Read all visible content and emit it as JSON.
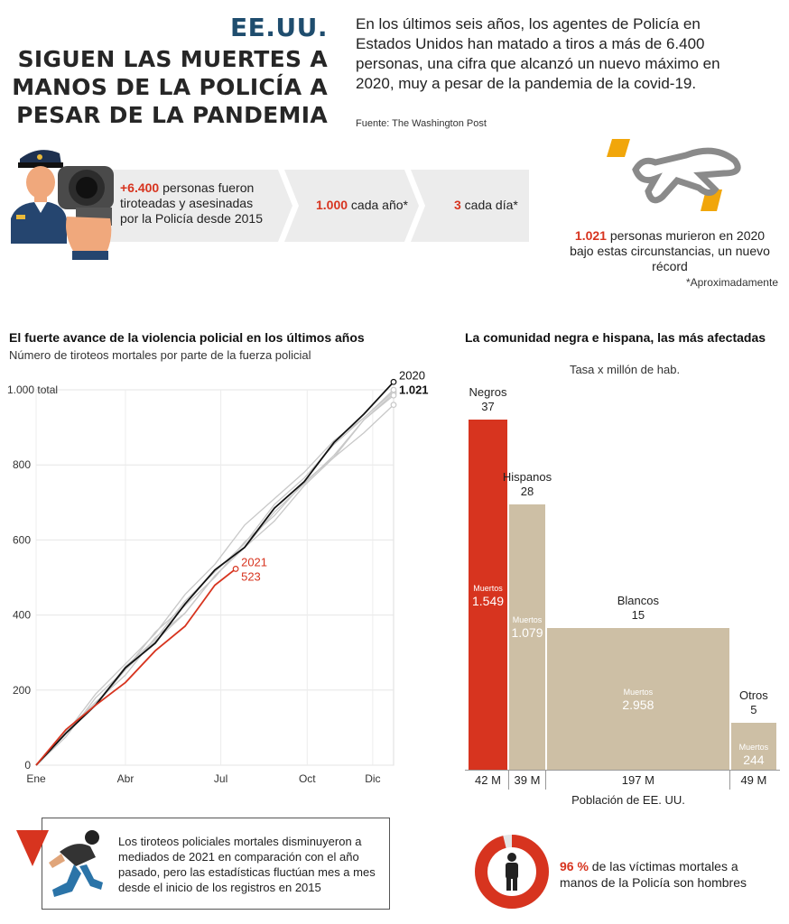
{
  "header": {
    "country": "EE.UU.",
    "title_lines": [
      "SIGUEN LAS MUERTES A",
      "MANOS DE LA POLICÍA A",
      "PESAR DE LA PANDEMIA"
    ],
    "intro": "En los últimos seis años, los agentes de Policía en Estados Unidos han matado a tiros a más de 6.400 personas, una cifra que alcanzó un nuevo máximo en 2020, muy a pesar de la pandemia de la covid-19.",
    "source": "Fuente: The Washington Post"
  },
  "stats": {
    "total_value": "+6.400",
    "total_text": " personas fueron tiroteadas y asesinadas por la Policía desde 2015",
    "per_year_value": "1.000",
    "per_year_text": " cada año*",
    "per_day_value": "3",
    "per_day_text": " cada día*",
    "record_value": "1.021",
    "record_text": " personas murieron en 2020 bajo estas circunstancias, un nuevo récord",
    "footnote": "*Aproximadamente"
  },
  "colors": {
    "red": "#d7341f",
    "tan": "#cdbfa5",
    "gray_lines": "#c8c8c8",
    "black_line": "#111111",
    "headline_blue": "#1f4d6e"
  },
  "icons": [
    "police-officer-icon",
    "handgun-icon",
    "body-outline-icon",
    "falling-person-icon",
    "person-icon"
  ],
  "line_chart": {
    "title": "El fuerte avance de la violencia policial en los últimos años",
    "subtitle": "Número de tiroteos mortales por parte de la fuerza policial"
  },
  "chart_data": [
    {
      "type": "line",
      "title": "El fuerte avance de la violencia policial en los últimos años",
      "subtitle": "Número de tiroteos mortales por parte de la fuerza policial",
      "ylabel": "",
      "ylim": [
        0,
        1000
      ],
      "y_ticks": [
        "0",
        "200",
        "400",
        "600",
        "800",
        "1.000 total"
      ],
      "x_ticks": [
        "Ene",
        "Abr",
        "Jul",
        "Oct",
        "Dic"
      ],
      "grid": true,
      "series": [
        {
          "name": "2020",
          "end_label": "1.021",
          "color": "#111111",
          "x": [
            0,
            1,
            2,
            3,
            4,
            5,
            6,
            7,
            8,
            9,
            10,
            11,
            12
          ],
          "values": [
            0,
            85,
            170,
            255,
            330,
            420,
            520,
            590,
            680,
            760,
            850,
            935,
            1021
          ]
        },
        {
          "name": "2021",
          "end_label": "523",
          "color": "#d7341f",
          "x": [
            0,
            1,
            2,
            3,
            4,
            5,
            6,
            6.7
          ],
          "values": [
            0,
            85,
            160,
            230,
            300,
            375,
            470,
            523
          ]
        },
        {
          "color": "#c8c8c8",
          "x": [
            0,
            1,
            2,
            3,
            4,
            5,
            6,
            7,
            8,
            9,
            10,
            11,
            12
          ],
          "values": [
            0,
            90,
            180,
            270,
            360,
            450,
            540,
            630,
            710,
            790,
            860,
            930,
            995
          ]
        },
        {
          "color": "#c8c8c8",
          "x": [
            0,
            1,
            2,
            3,
            4,
            5,
            6,
            7,
            8,
            9,
            10,
            11,
            12
          ],
          "values": [
            0,
            80,
            165,
            245,
            330,
            415,
            500,
            585,
            665,
            750,
            835,
            915,
            990
          ]
        },
        {
          "color": "#c8c8c8",
          "x": [
            0,
            1,
            2,
            3,
            4,
            5,
            6,
            7,
            8,
            9,
            10,
            11,
            12
          ],
          "values": [
            0,
            85,
            175,
            260,
            345,
            425,
            510,
            590,
            670,
            745,
            820,
            895,
            960
          ]
        },
        {
          "color": "#c8c8c8",
          "x": [
            0,
            1,
            2,
            3,
            4,
            5,
            6,
            7,
            8,
            9,
            10,
            11,
            12
          ],
          "values": [
            0,
            88,
            172,
            258,
            340,
            428,
            515,
            600,
            690,
            770,
            845,
            925,
            1000
          ]
        },
        {
          "color": "#c8c8c8",
          "x": [
            0,
            1,
            2,
            3,
            4,
            5,
            6,
            7,
            8,
            9,
            10,
            11,
            12
          ],
          "values": [
            0,
            82,
            168,
            250,
            335,
            410,
            495,
            580,
            660,
            740,
            825,
            910,
            985
          ]
        }
      ]
    },
    {
      "type": "bar",
      "title": "La comunidad negra e hispana, las más afectadas",
      "subtitle": "Tasa x millón de hab.",
      "xlabel": "Población de EE. UU.",
      "categories": [
        "Negros",
        "Hispanos",
        "Blancos",
        "Otros"
      ],
      "values": [
        37,
        28,
        15,
        5
      ],
      "population": [
        "42 M",
        "39 M",
        "197 M",
        "49 M"
      ],
      "population_millions": [
        42,
        39,
        197,
        49
      ],
      "deaths_label": "Muertos",
      "deaths": [
        "1.549",
        "1.079",
        "2.958",
        "244"
      ],
      "colors": [
        "#d7341f",
        "#cdbfa5",
        "#cdbfa5",
        "#cdbfa5"
      ]
    }
  ],
  "bar_chart": {
    "title": "La comunidad negra e hispana, las más afectadas",
    "subtitle": "Tasa x millón de hab.",
    "xlabel": "Población de EE. UU."
  },
  "note": "Los tiroteos policiales mortales disminuyeron a mediados de 2021 en comparación con el año pasado, pero las estadísticas fluctúan mes a mes desde el inicio de los registros en 2015",
  "gender": {
    "value": "96 %",
    "text": " de las víctimas mortales a manos de la Policía son hombres",
    "fraction": 0.96
  }
}
